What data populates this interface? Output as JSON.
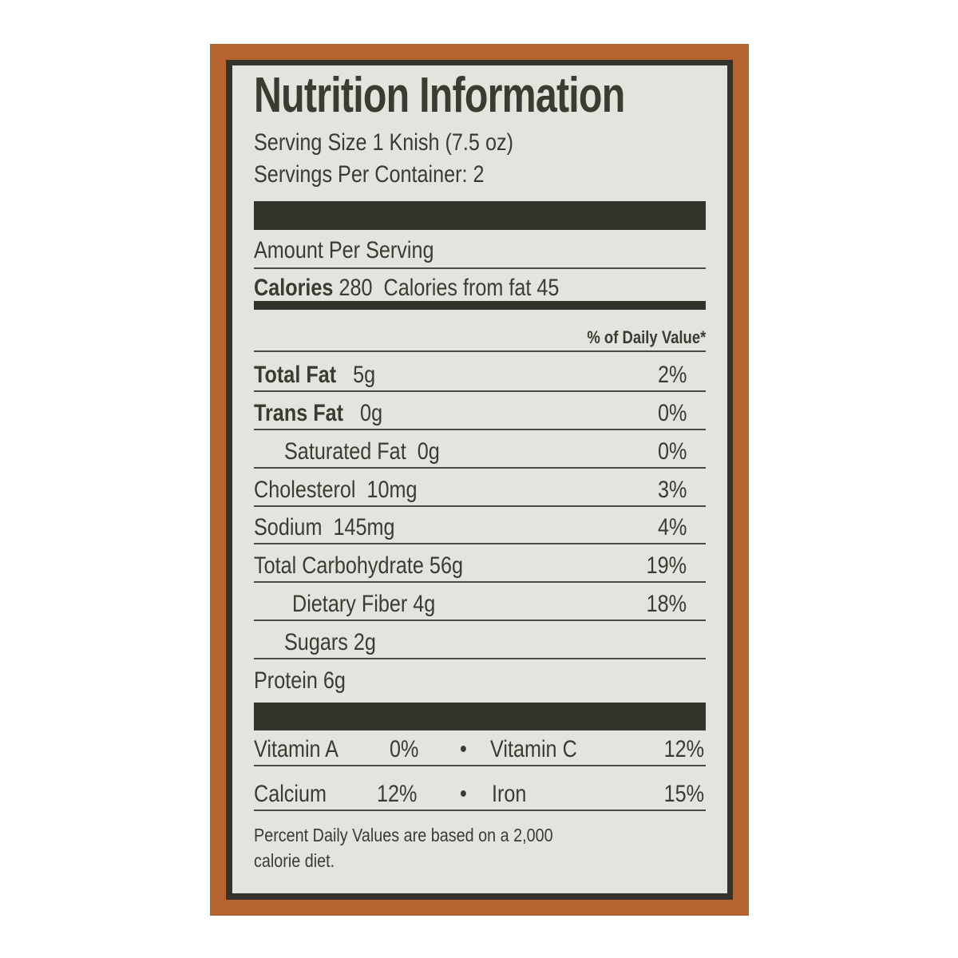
{
  "title": "Nutrition Information",
  "serving_size": "Serving Size 1 Knish (7.5 oz)",
  "servings_per_container": "Servings Per Container: 2",
  "amount_per_serving": "Amount Per Serving",
  "calories": {
    "label": "Calories",
    "value": "280",
    "from_fat": "Calories from fat 45"
  },
  "dv_header": "% of Daily Value*",
  "nutrients": [
    {
      "label": "Total Fat",
      "amount": "5g",
      "dv": "2%",
      "bold": true
    },
    {
      "label": "Trans Fat",
      "amount": "0g",
      "dv": "0%",
      "bold": true
    },
    {
      "label": "Saturated Fat",
      "amount": "0g",
      "dv": "0%"
    },
    {
      "label": "Cholesterol",
      "amount": "10mg",
      "dv": "3%"
    },
    {
      "label": "Sodium",
      "amount": "145mg",
      "dv": "4%"
    },
    {
      "label": "Total Carbohydrate",
      "amount": "56g",
      "dv": "19%"
    },
    {
      "label": "Dietary Fiber",
      "amount": "4g",
      "dv": "18%"
    },
    {
      "label": "Sugars",
      "amount": "2g",
      "dv": ""
    },
    {
      "label": "Protein",
      "amount": "6g",
      "dv": ""
    }
  ],
  "vitamins": [
    {
      "left_label": "Vitamin A",
      "left_value": "0%",
      "bullet": "•",
      "right_label": "Vitamin C",
      "right_value": "12%"
    },
    {
      "left_label": "Calcium",
      "left_value": "12%",
      "bullet": "•",
      "right_label": "Iron",
      "right_value": "15%"
    }
  ],
  "footnote_line1": "Percent Daily Values are based on a 2,000",
  "footnote_line2": "calorie diet.",
  "colors": {
    "package": "#b5642f",
    "border": "#33332b",
    "label_bg": "#e2e5de",
    "text": "#3b3b31"
  }
}
